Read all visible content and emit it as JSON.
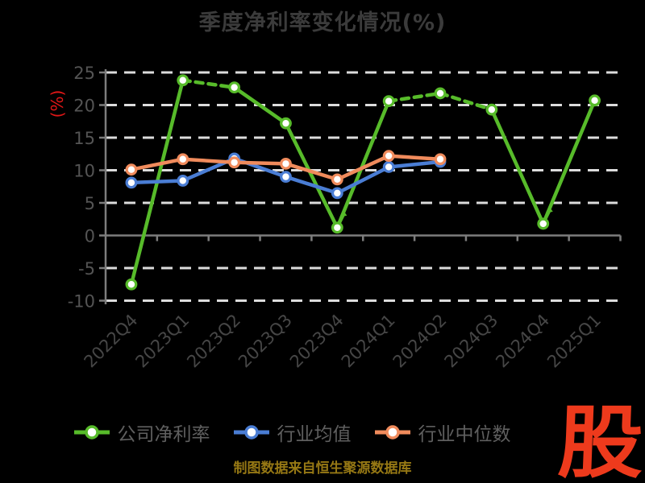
{
  "title": "季度净利率变化情况(%)",
  "y_axis_unit_label": "(%)",
  "caption": "制图数据来自恒生聚源数据库",
  "logo_text": "股",
  "colors": {
    "background": "#000000",
    "title": "#3b3b3b",
    "grid": "#dcdcdc",
    "axis": "#7d7d7d",
    "tick_labels": "#4f4f4f",
    "legend_labels": "#5f5f5f",
    "y_unit_label": "#e01717",
    "caption": "#967814",
    "logo": "#ee3a1c"
  },
  "chart_data": {
    "type": "line",
    "title": "季度净利率变化情况(%)",
    "xlabel": "",
    "ylabel": "(%)",
    "categories": [
      "2022Q4",
      "2023Q1",
      "2023Q2",
      "2023Q3",
      "2023Q4",
      "2024Q1",
      "2024Q2",
      "2024Q3",
      "2024Q4",
      "2025Q1"
    ],
    "yticks": [
      25,
      20,
      15,
      10,
      5,
      0,
      -5,
      -10
    ],
    "ylim": [
      -10,
      25
    ],
    "grid": "horizontal-white-dashed",
    "legend_position": "bottom",
    "series": [
      {
        "id": "company-net-margin",
        "name": "公司净利率",
        "color": "#57bb2a",
        "values": [
          -7.5,
          23.8,
          22.7,
          17.2,
          1.2,
          20.6,
          21.8,
          19.3,
          1.8,
          20.7
        ],
        "dashed_segment_starts": [
          1,
          5,
          6
        ],
        "min_arrow_indices": [
          4,
          8
        ]
      },
      {
        "id": "industry-mean",
        "name": "行业均值",
        "color": "#4a7dd4",
        "values": [
          8.1,
          8.4,
          11.8,
          9.0,
          6.5,
          10.5,
          11.3
        ]
      },
      {
        "id": "industry-median",
        "name": "行业中位数",
        "color": "#f08b5c",
        "values": [
          10.1,
          11.7,
          11.2,
          11.0,
          8.6,
          12.2,
          11.7
        ]
      }
    ]
  }
}
